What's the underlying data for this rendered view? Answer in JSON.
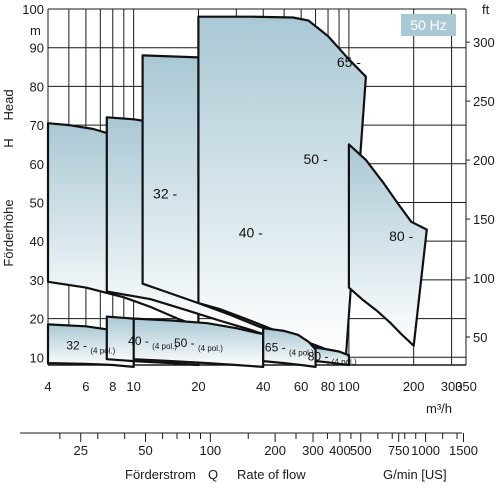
{
  "chart_data": {
    "type": "area",
    "frequency_badge": "50 Hz",
    "badge_color": "#a8c8d6",
    "curve_fill_top": "#a9c8d4",
    "curve_fill_bottom": "#ffffff",
    "y_axis_left": {
      "unit": "m",
      "labels": [
        "Förderhöhe",
        "H",
        "Head"
      ],
      "ylim": [
        8,
        100
      ],
      "ticks": [
        10,
        20,
        30,
        40,
        50,
        60,
        70,
        80,
        90,
        100
      ]
    },
    "y_axis_right": {
      "unit": "ft",
      "ticks": [
        50,
        100,
        150,
        200,
        250,
        300
      ]
    },
    "x_axis_main": {
      "unit": "m³/h",
      "scale": "log",
      "xlim": [
        4,
        350
      ],
      "ticks": [
        4,
        6,
        8,
        10,
        20,
        40,
        60,
        80,
        100,
        200,
        300,
        350
      ]
    },
    "x_axis_secondary": {
      "unit": "G/min [US]",
      "ticks": [
        25,
        50,
        100,
        200,
        300,
        400,
        500,
        750,
        1000,
        1500
      ]
    },
    "x_labels_bottom": [
      "Förderstrom",
      "Q",
      "Rate of flow"
    ],
    "series": [
      {
        "label": "32",
        "points": [
          [
            4,
            70.5
          ],
          [
            5,
            70
          ],
          [
            6.5,
            69
          ],
          [
            8,
            67.5
          ],
          [
            10,
            66
          ],
          [
            13,
            63.5
          ],
          [
            16,
            61.5
          ],
          [
            19,
            59.5
          ],
          [
            20,
            59
          ],
          [
            20,
            18
          ],
          [
            16,
            20
          ],
          [
            12,
            23
          ],
          [
            9,
            25.5
          ],
          [
            6,
            28
          ],
          [
            4,
            29.5
          ]
        ]
      },
      {
        "label": "40",
        "points": [
          [
            7.5,
            72
          ],
          [
            10,
            71.5
          ],
          [
            15,
            70
          ],
          [
            22,
            67.5
          ],
          [
            30,
            64.5
          ],
          [
            37,
            61.5
          ],
          [
            40,
            59.5
          ],
          [
            40,
            16
          ],
          [
            33,
            17.5
          ],
          [
            25,
            19.5
          ],
          [
            18,
            22
          ],
          [
            12,
            25
          ],
          [
            7.5,
            27
          ]
        ]
      },
      {
        "label": "50",
        "points": [
          [
            11,
            88
          ],
          [
            20,
            87.5
          ],
          [
            30,
            86
          ],
          [
            45,
            82
          ],
          [
            57,
            76
          ],
          [
            65,
            70
          ],
          [
            70,
            64
          ],
          [
            75,
            59
          ],
          [
            70,
            54
          ],
          [
            70,
            13
          ],
          [
            60,
            14
          ],
          [
            48,
            16
          ],
          [
            38,
            18
          ],
          [
            28,
            21
          ],
          [
            20,
            24
          ],
          [
            14,
            27
          ],
          [
            11,
            29
          ]
        ]
      },
      {
        "label": "65",
        "points": [
          [
            20,
            98
          ],
          [
            35,
            98
          ],
          [
            55,
            97.8
          ],
          [
            65,
            97
          ],
          [
            80,
            93
          ],
          [
            100,
            87
          ],
          [
            120,
            82.5
          ],
          [
            97,
            10.5
          ],
          [
            86,
            11
          ],
          [
            75,
            12.5
          ],
          [
            60,
            14.5
          ],
          [
            45,
            17
          ],
          [
            33,
            20
          ],
          [
            25,
            22.5
          ],
          [
            20,
            24
          ]
        ]
      },
      {
        "label": "80",
        "points": [
          [
            100,
            65
          ],
          [
            120,
            61
          ],
          [
            145,
            55
          ],
          [
            170,
            49.5
          ],
          [
            195,
            45
          ],
          [
            230,
            43
          ],
          [
            200,
            13
          ],
          [
            175,
            16
          ],
          [
            155,
            19
          ],
          [
            135,
            22
          ],
          [
            115,
            25
          ],
          [
            100,
            28
          ]
        ]
      },
      {
        "label": "32 -",
        "sub": "(4 pol.)",
        "points": [
          [
            4,
            18.5
          ],
          [
            6,
            18
          ],
          [
            8,
            17
          ],
          [
            10,
            15.7
          ],
          [
            10,
            7.5
          ],
          [
            8,
            8
          ],
          [
            6,
            8.3
          ],
          [
            4,
            8.5
          ]
        ]
      },
      {
        "label": "40 -",
        "sub": "(4 pol.)",
        "points": [
          [
            7.5,
            20.5
          ],
          [
            10,
            20
          ],
          [
            14,
            19.5
          ],
          [
            18,
            18.8
          ],
          [
            20,
            18.5
          ],
          [
            20,
            8
          ],
          [
            15,
            8.5
          ],
          [
            10,
            9
          ],
          [
            7.5,
            9.5
          ]
        ]
      },
      {
        "label": "50 -",
        "sub": "(4 pol.)",
        "points": [
          [
            10,
            20
          ],
          [
            15,
            19.5
          ],
          [
            22,
            18.8
          ],
          [
            30,
            17.5
          ],
          [
            36,
            16.5
          ],
          [
            40,
            16
          ],
          [
            40,
            7.5
          ],
          [
            30,
            8
          ],
          [
            22,
            8.5
          ],
          [
            15,
            9
          ],
          [
            10,
            9.5
          ]
        ]
      },
      {
        "label": "65 -",
        "sub": "(4 pol.)",
        "points": [
          [
            40,
            17.5
          ],
          [
            50,
            16.8
          ],
          [
            58,
            15.8
          ],
          [
            65,
            14
          ],
          [
            70,
            12
          ],
          [
            70,
            7.5
          ],
          [
            60,
            8
          ],
          [
            50,
            8.5
          ],
          [
            40,
            9
          ]
        ]
      },
      {
        "label": "80 -",
        "sub": "(4 pol.)",
        "points": [
          [
            70,
            12.5
          ],
          [
            80,
            12
          ],
          [
            90,
            11.5
          ],
          [
            100,
            10.5
          ],
          [
            100,
            8
          ],
          [
            90,
            8.3
          ],
          [
            80,
            8.7
          ],
          [
            70,
            9
          ]
        ]
      }
    ],
    "label_positions": [
      {
        "text": "32 -",
        "x": 14,
        "y": 51
      },
      {
        "text": "40 -",
        "x": 35,
        "y": 41
      },
      {
        "text": "50 -",
        "x": 70,
        "y": 60
      },
      {
        "text": "65 -",
        "x": 100,
        "y": 85
      },
      {
        "text": "80 -",
        "x": 175,
        "y": 40
      }
    ]
  }
}
